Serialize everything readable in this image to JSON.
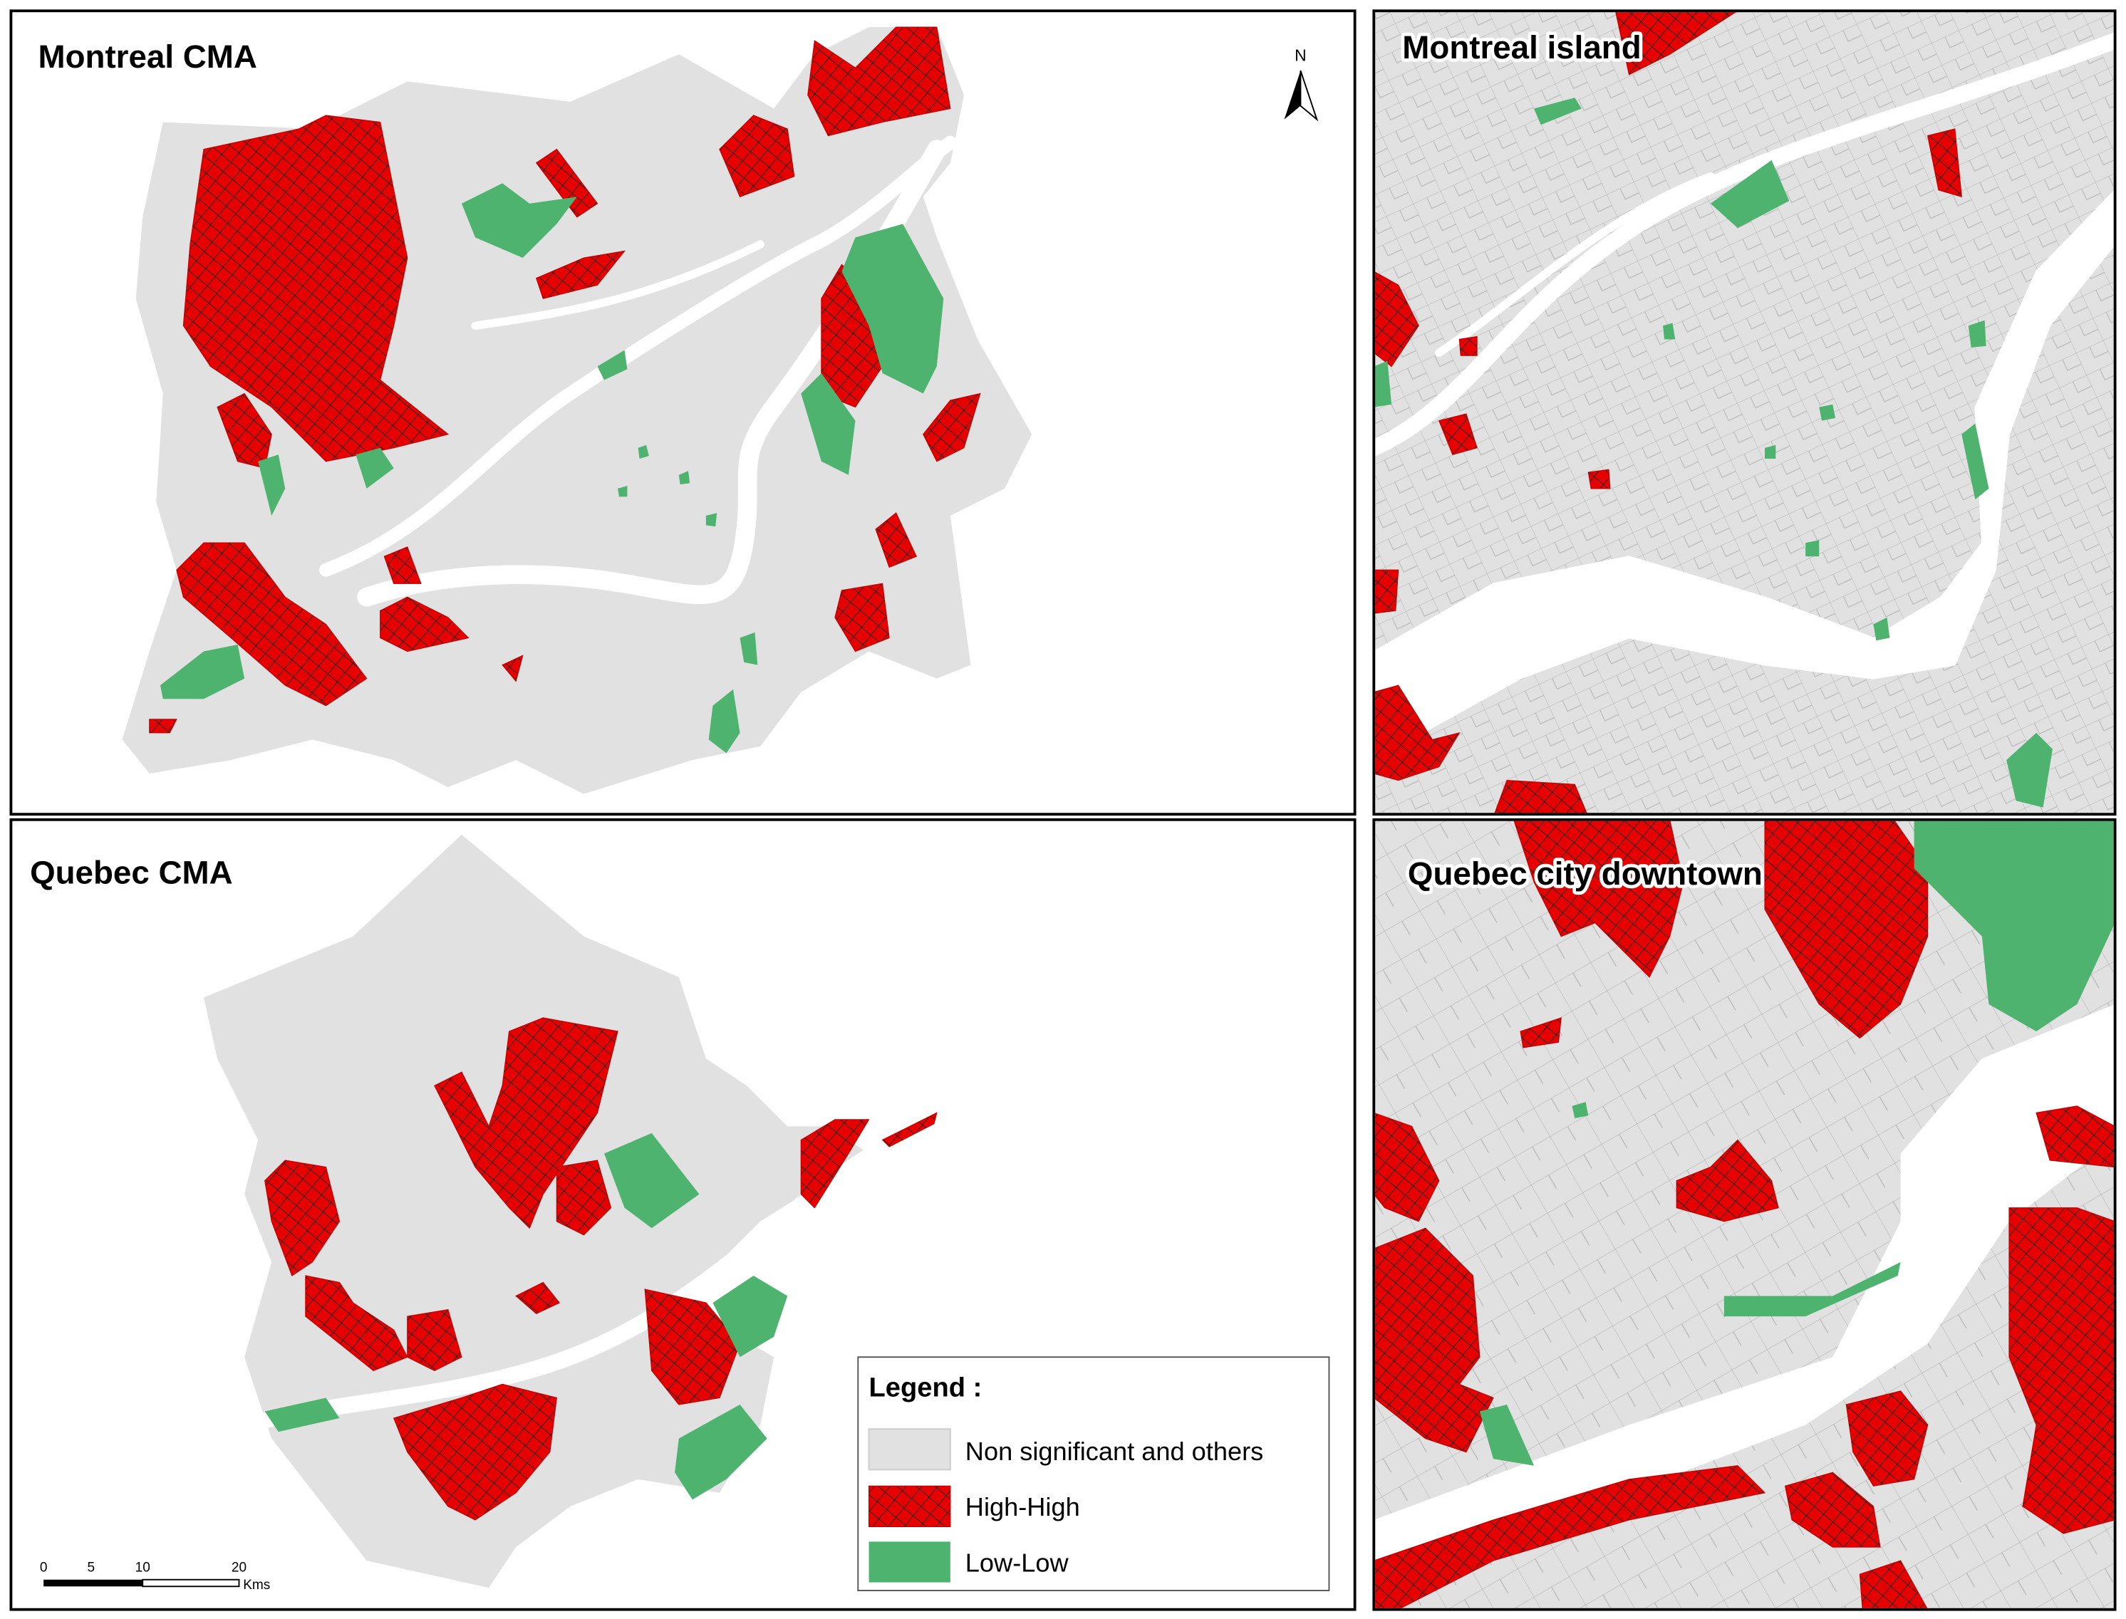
{
  "panels": [
    {
      "title": "Montreal CMA"
    },
    {
      "title": "Montreal island"
    },
    {
      "title": "Quebec CMA"
    },
    {
      "title": "Quebec city downtown"
    }
  ],
  "north_arrow": {
    "label": "N"
  },
  "scale_bar": {
    "labels": [
      "0",
      "5",
      "10",
      "20"
    ],
    "unit": "Kms"
  },
  "legend": {
    "title": "Legend :",
    "items": [
      "Non significant and others",
      "High-High",
      "Low-Low"
    ]
  }
}
